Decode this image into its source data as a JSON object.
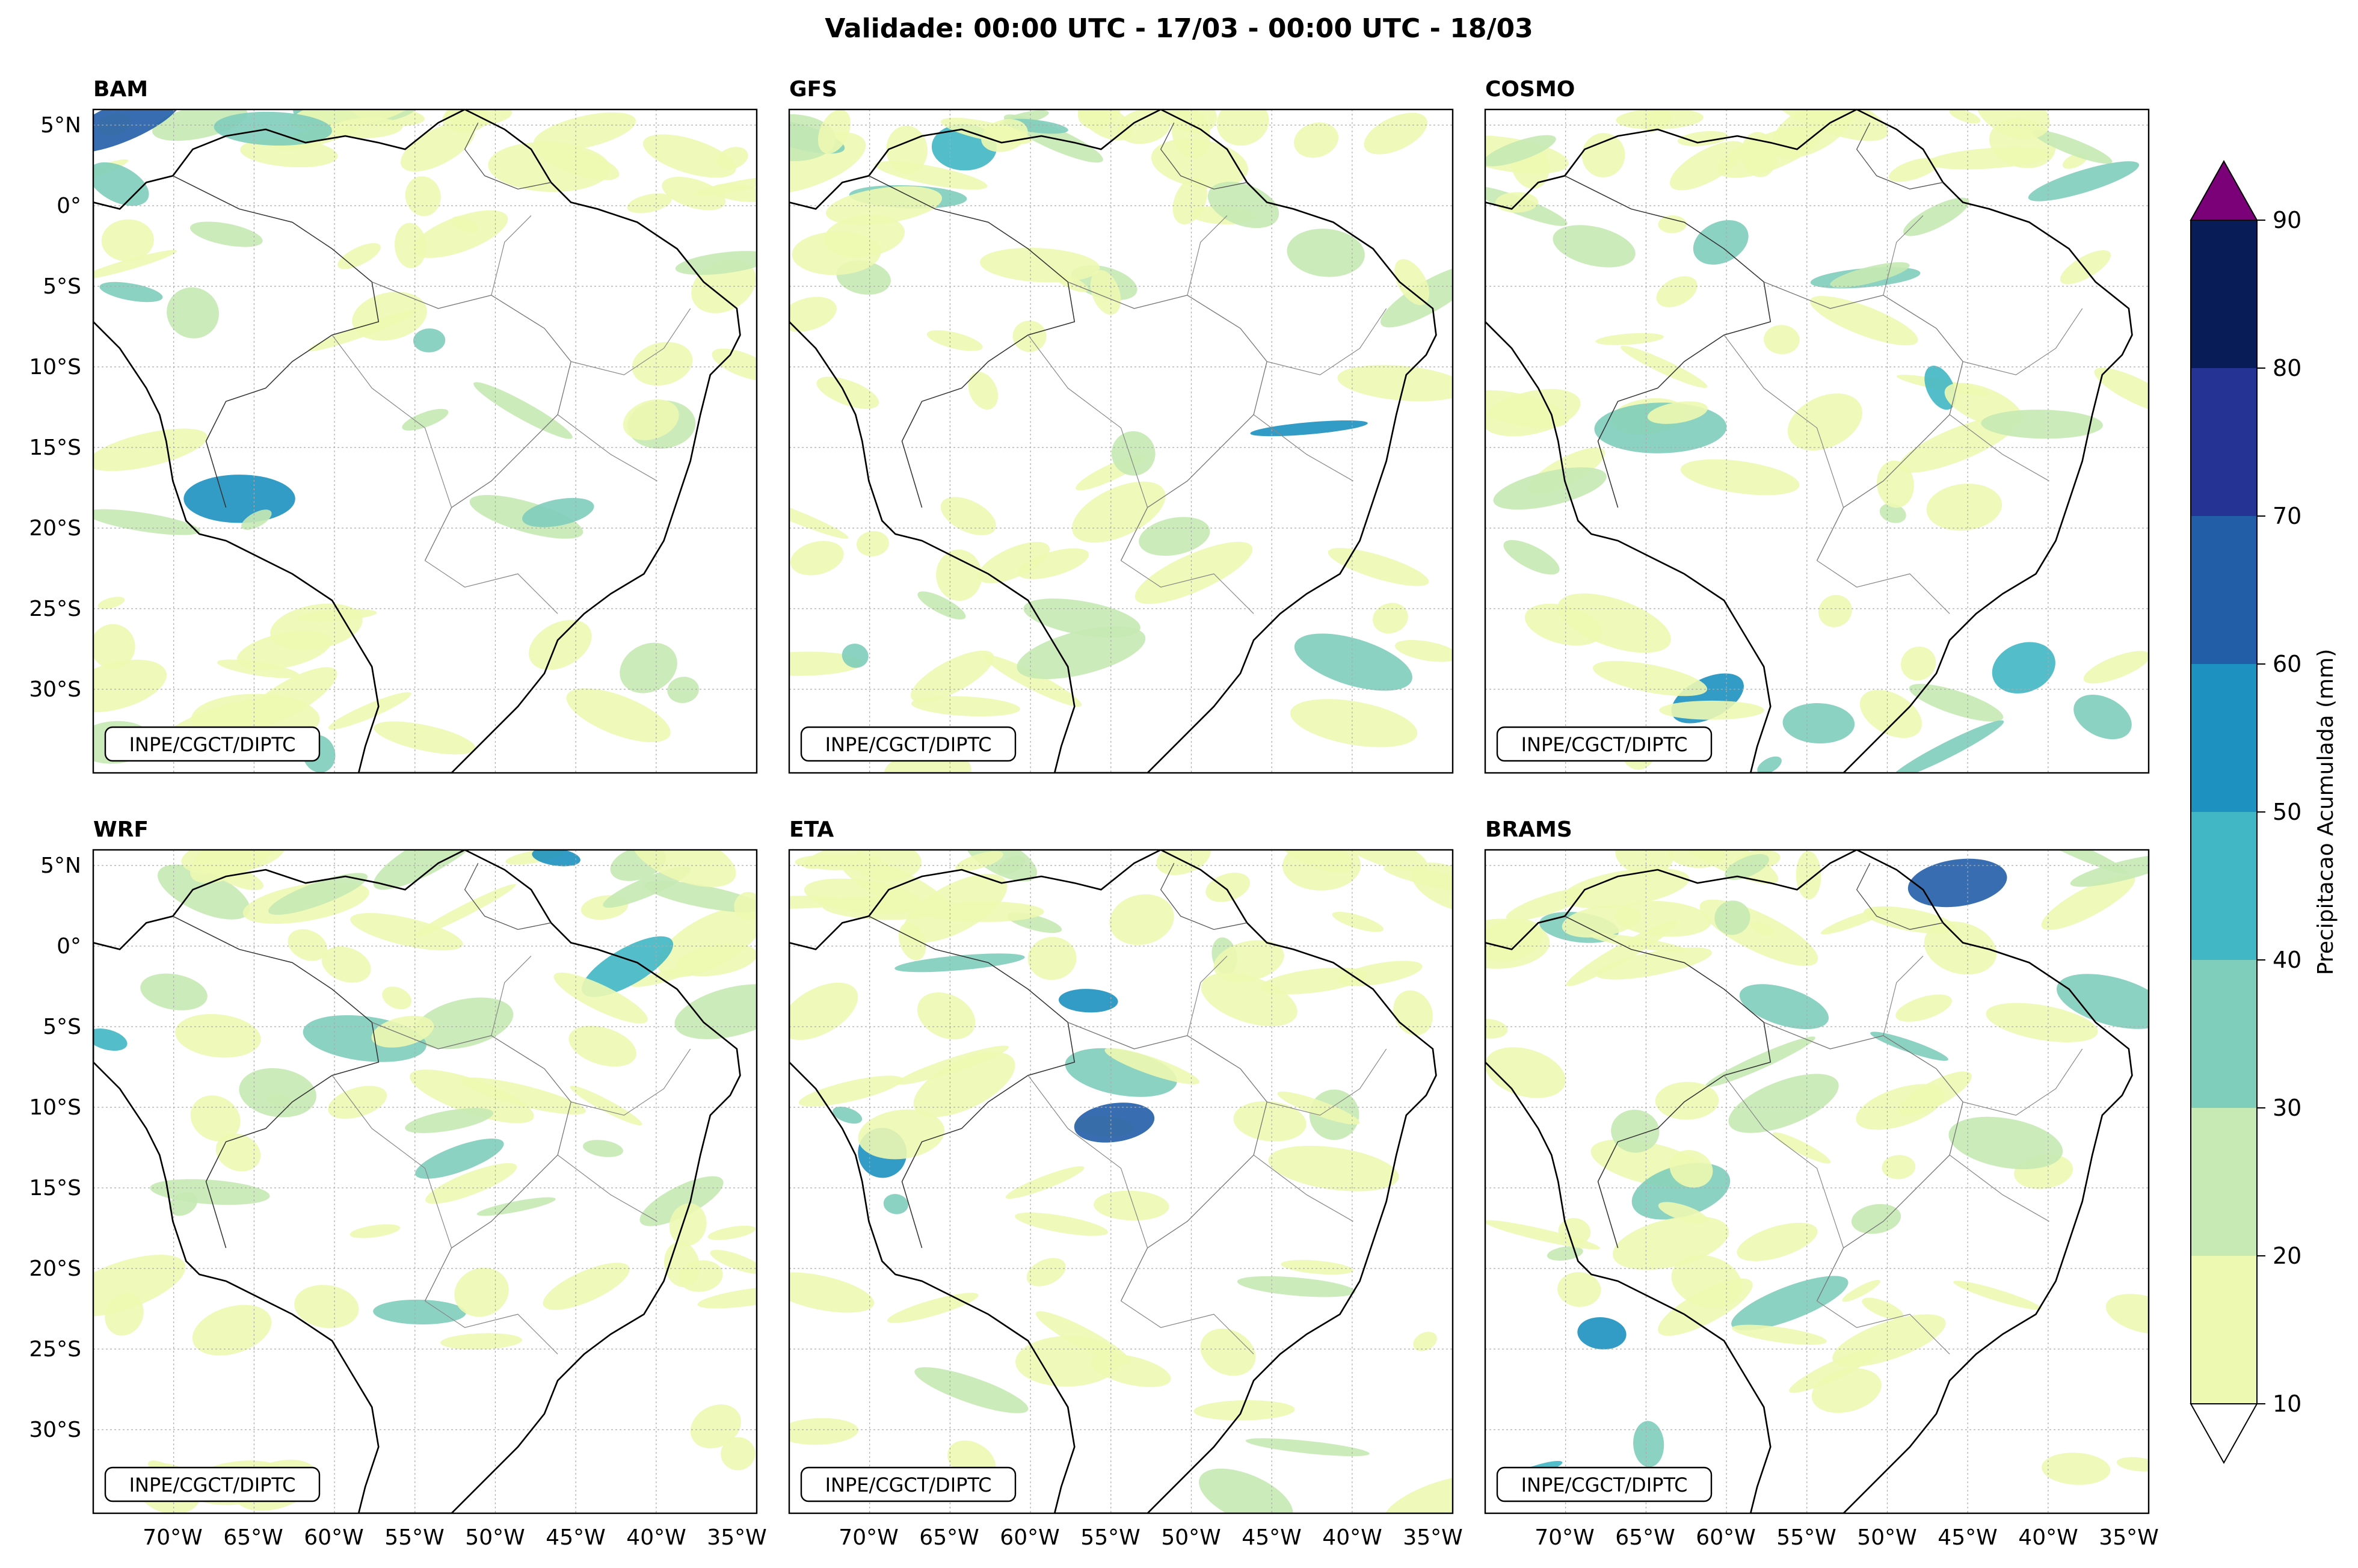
{
  "title": "Validade: 00:00 UTC - 17/03 - 00:00 UTC - 18/03",
  "credit": "INPE/CGCT/DIPTC",
  "lat_labels": [
    "5°N",
    "0°",
    "5°S",
    "10°S",
    "15°S",
    "20°S",
    "25°S",
    "30°S"
  ],
  "lon_labels": [
    "70°W",
    "65°W",
    "60°W",
    "55°W",
    "50°W",
    "45°W",
    "40°W",
    "35°W"
  ],
  "panels": [
    {
      "name": "BAM"
    },
    {
      "name": "GFS"
    },
    {
      "name": "COSMO"
    },
    {
      "name": "WRF"
    },
    {
      "name": "ETA"
    },
    {
      "name": "BRAMS"
    }
  ],
  "colorbar": {
    "label": "Precipitacao Acumulada (mm)",
    "ticks": [
      "10",
      "20",
      "30",
      "40",
      "50",
      "60",
      "70",
      "80",
      "90"
    ],
    "colors": [
      "#edf8b1",
      "#c7e9b4",
      "#7fcdbb",
      "#41b6c4",
      "#1d91c0",
      "#225ea8",
      "#253494",
      "#081d58"
    ],
    "over_color": "#7a0177",
    "under_color": "#ffffff"
  }
}
